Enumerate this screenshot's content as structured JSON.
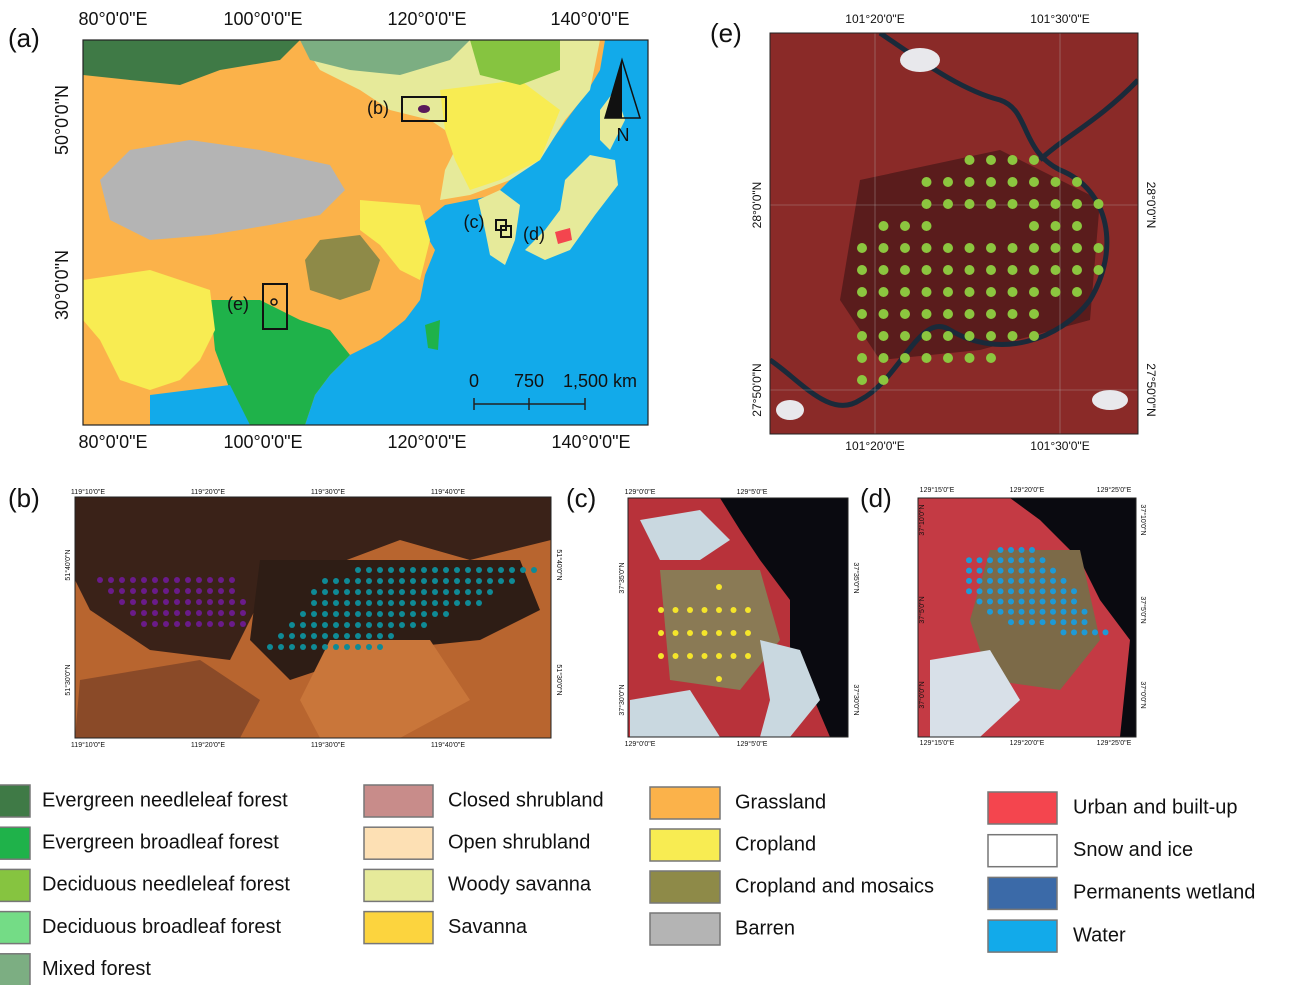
{
  "panel_a": {
    "label": "(a)",
    "top_labels": [
      "80°0'0\"E",
      "100°0'0\"E",
      "120°0'0\"E",
      "140°0'0\"E"
    ],
    "bottom_labels": [
      "80°0'0\"E",
      "100°0'0\"E",
      "120°0'0\"E",
      "140°0'0\"E"
    ],
    "left_labels": [
      "50°0'0\"N",
      "30°0'0\"N"
    ],
    "inset_labels": [
      "(b)",
      "(c)",
      "(d)",
      "(e)"
    ],
    "scale_labels": [
      "0",
      "750",
      "1,500 km"
    ],
    "north": "N"
  },
  "panel_b": {
    "label": "(b)",
    "top_labels": [
      "119°10'0\"E",
      "119°20'0\"E",
      "119°30'0\"E",
      "119°40'0\"E"
    ],
    "bottom_labels": [
      "119°10'0\"E",
      "119°20'0\"E",
      "119°30'0\"E",
      "119°40'0\"E"
    ],
    "left_labels": [
      "51°40'0\"N",
      "51°30'0\"N"
    ],
    "right_labels": [
      "51°40'0\"N",
      "51°30'0\"N"
    ]
  },
  "panel_c": {
    "label": "(c)",
    "top_labels": [
      "129°0'0\"E",
      "129°5'0\"E"
    ],
    "bottom_labels": [
      "129°0'0\"E",
      "129°5'0\"E"
    ],
    "left_labels": [
      "37°35'0\"N",
      "37°30'0\"N"
    ],
    "right_labels": [
      "37°35'0\"N",
      "37°30'0\"N"
    ]
  },
  "panel_d": {
    "label": "(d)",
    "top_labels": [
      "129°15'0\"E",
      "129°20'0\"E",
      "129°25'0\"E"
    ],
    "bottom_labels": [
      "129°15'0\"E",
      "129°20'0\"E",
      "129°25'0\"E"
    ],
    "left_labels": [
      "37°10'0\"N",
      "37°5'0\"N",
      "37°0'0\"N"
    ],
    "right_labels": [
      "37°10'0\"N",
      "37°5'0\"N",
      "37°0'0\"N"
    ]
  },
  "panel_e": {
    "label": "(e)",
    "top_labels": [
      "101°20'0\"E",
      "101°30'0\"E"
    ],
    "bottom_labels": [
      "101°20'0\"E",
      "101°30'0\"E"
    ],
    "left_labels": [
      "28°0'0\"N",
      "27°50'0\"N"
    ],
    "right_labels": [
      "28°0'0\"N",
      "27°50'0\"N"
    ]
  },
  "legend": {
    "columns": [
      [
        {
          "label": "Evergreen needleleaf forest",
          "color": "#3f7a46"
        },
        {
          "label": "Evergreen broadleaf forest",
          "color": "#1fb24a"
        },
        {
          "label": "Deciduous needleleaf forest",
          "color": "#86c440"
        },
        {
          "label": "Deciduous broadleaf forest",
          "color": "#74dc86"
        },
        {
          "label": "Mixed forest",
          "color": "#7cae82"
        }
      ],
      [
        {
          "label": "Closed shrubland",
          "color": "#c88c8a"
        },
        {
          "label": "Open shrubland",
          "color": "#fde0b4"
        },
        {
          "label": "Woody savanna",
          "color": "#e6ea9a"
        },
        {
          "label": "Savanna",
          "color": "#fcd43e"
        }
      ],
      [
        {
          "label": "Grassland",
          "color": "#fbb24a"
        },
        {
          "label": "Cropland",
          "color": "#f8ec52"
        },
        {
          "label": "Cropland and mosaics",
          "color": "#8e8a48"
        },
        {
          "label": "Barren",
          "color": "#b4b4b4"
        }
      ],
      [
        {
          "label": "Urban and built-up",
          "color": "#f4454e"
        },
        {
          "label": "Snow and ice",
          "color": "#ffffff"
        },
        {
          "label": "Permanents wetland",
          "color": "#3b6aa8"
        },
        {
          "label": "Water",
          "color": "#12aaea"
        }
      ]
    ]
  }
}
